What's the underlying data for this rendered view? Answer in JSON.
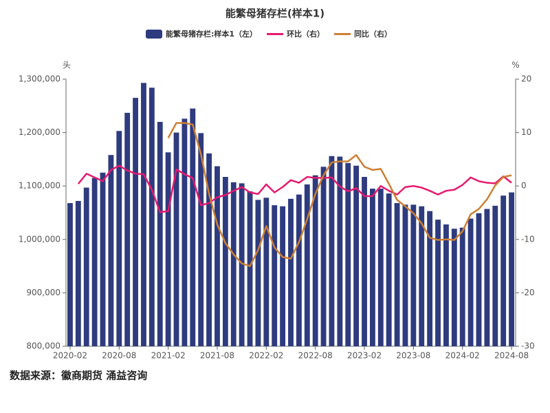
{
  "chart_data": {
    "type": "bar-line",
    "title": "能繁母猪存栏(样本1)",
    "y_unit": "头",
    "y2_unit": "%",
    "source": "数据来源：徽商期货 涌益咨询",
    "categories": [
      "2020-02",
      null,
      null,
      null,
      null,
      null,
      "2020-08",
      null,
      null,
      null,
      null,
      null,
      "2021-02",
      null,
      null,
      null,
      null,
      null,
      "2021-08",
      null,
      null,
      null,
      null,
      null,
      "2022-02",
      null,
      null,
      null,
      null,
      null,
      "2022-08",
      null,
      null,
      null,
      null,
      null,
      "2023-02",
      null,
      null,
      null,
      null,
      null,
      "2023-08",
      null,
      null,
      null,
      null,
      null,
      "2024-02",
      null,
      null,
      null,
      null,
      null,
      "2024-08"
    ],
    "series": [
      {
        "name": "能繁母猪存栏:样本1（左）",
        "kind": "bar",
        "color": "#2e3b7e",
        "values": [
          1068000,
          1072000,
          1097000,
          1115000,
          1125000,
          1158000,
          1203000,
          1237000,
          1265000,
          1293000,
          1284000,
          1220000,
          1163000,
          1200000,
          1226000,
          1245000,
          1199000,
          1161000,
          1137000,
          1117000,
          1107000,
          1105000,
          1090000,
          1074000,
          1078000,
          1064000,
          1062000,
          1076000,
          1084000,
          1103000,
          1120000,
          1136000,
          1156000,
          1155000,
          1143000,
          1138000,
          1117000,
          1095000,
          1095000,
          1086000,
          1068000,
          1065000,
          1065000,
          1062000,
          1053000,
          1037000,
          1028000,
          1020000,
          1022000,
          1039000,
          1049000,
          1057000,
          1063000,
          1082000,
          1088000
        ]
      },
      {
        "name": "环比（右）",
        "kind": "line",
        "axis": "y2",
        "color": "#e6196e",
        "values": [
          null,
          0.4,
          2.3,
          1.6,
          0.9,
          3.0,
          3.8,
          2.9,
          2.3,
          2.2,
          -0.7,
          -4.9,
          -4.7,
          3.1,
          2.2,
          1.5,
          -3.6,
          -3.2,
          -2.1,
          -1.7,
          -0.9,
          -0.2,
          -1.2,
          -1.5,
          0.3,
          -1.2,
          -0.2,
          1.1,
          0.6,
          1.7,
          1.5,
          1.5,
          1.6,
          -0.1,
          -1.0,
          -0.4,
          -1.9,
          -1.9,
          0.0,
          -0.9,
          -1.6,
          -0.2,
          0.0,
          -0.3,
          -0.9,
          -1.6,
          -0.9,
          -0.7,
          0.2,
          1.6,
          0.9,
          0.6,
          0.5,
          1.8,
          0.6
        ]
      },
      {
        "name": "同比（右）",
        "kind": "line",
        "axis": "y2",
        "color": "#cd7f32",
        "values": [
          null,
          null,
          null,
          null,
          null,
          null,
          null,
          null,
          null,
          null,
          null,
          null,
          9,
          11.8,
          11.8,
          11.5,
          6.0,
          -1.5,
          -7.2,
          -10.7,
          -12.8,
          -14.5,
          -15.0,
          -12.0,
          -7.5,
          -11.5,
          -13.3,
          -13.6,
          -10.5,
          -6.2,
          -1.5,
          2.0,
          4.4,
          4.6,
          4.6,
          5.8,
          3.6,
          3.0,
          3.2,
          0.4,
          -2.6,
          -3.8,
          -5.1,
          -7.0,
          -9.7,
          -10.1,
          -10.0,
          -10.1,
          -8.5,
          -5.3,
          -4.3,
          -2.5,
          0.1,
          1.7,
          2.0
        ]
      }
    ],
    "ylim": [
      800000,
      1300000
    ],
    "yticks": [
      {
        "value": 800000,
        "label": "800,000"
      },
      {
        "value": 900000,
        "label": "900,000"
      },
      {
        "value": 1000000,
        "label": "1,000,000"
      },
      {
        "value": 1100000,
        "label": "1,100,000"
      },
      {
        "value": 1200000,
        "label": "1,200,000"
      },
      {
        "value": 1300000,
        "label": "1,300,000"
      }
    ],
    "y2lim": [
      -30,
      20
    ],
    "y2ticks": [
      -30,
      -20,
      -10,
      0,
      10,
      20
    ],
    "grid": false
  }
}
